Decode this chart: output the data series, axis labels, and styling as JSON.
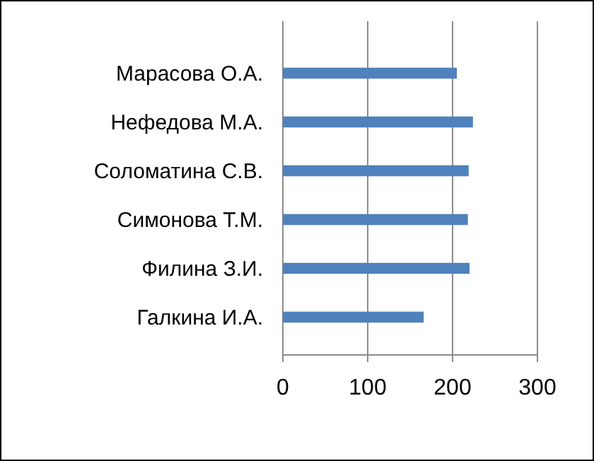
{
  "chart_data": {
    "type": "bar",
    "orientation": "horizontal",
    "categories": [
      "Марасова О.А.",
      "Нефедова М.А.",
      "Соломатина С.В.",
      "Симонова Т.М.",
      "Филина З.И.",
      "Галкина И.А."
    ],
    "values": [
      205,
      224,
      219,
      218,
      220,
      166
    ],
    "color": "#4f81bd",
    "xlim": [
      0,
      300
    ],
    "xticks": [
      0,
      100,
      200,
      300
    ],
    "grid": "x"
  }
}
